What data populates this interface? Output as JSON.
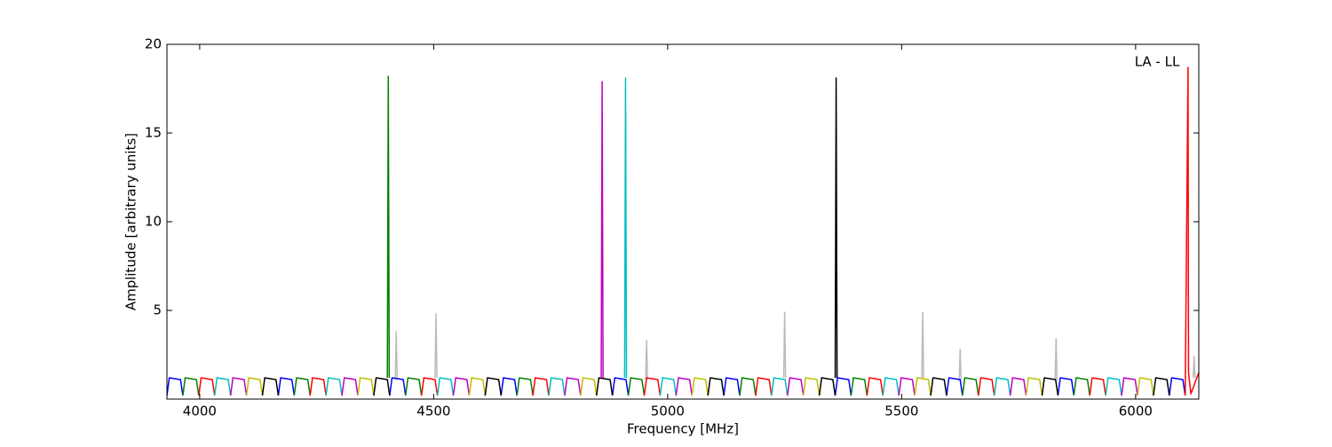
{
  "chart_data": {
    "type": "line",
    "annotation": "LA - LL",
    "x_label": "Frequency [MHz]",
    "y_label": "Amplitude [arbitrary units]",
    "xlim": [
      3930,
      6135
    ],
    "xticks": [
      4000,
      4500,
      5000,
      5500,
      6000
    ],
    "ylim": [
      0,
      20
    ],
    "yticks": [
      5,
      10,
      15,
      20
    ],
    "series": [
      {
        "color": "#bbbbbb",
        "x": [
          4418,
          4420,
          4422,
          null,
          4503,
          4505,
          4507,
          null,
          4953,
          4955,
          4957,
          null,
          5248,
          5250,
          5252,
          null,
          5543,
          5545,
          5547,
          null,
          5623,
          5625,
          5627,
          null,
          5828,
          5830,
          5832,
          null,
          6123,
          6125,
          6127
        ],
        "values": [
          1.1,
          3.8,
          1.1,
          null,
          1.2,
          4.8,
          1.2,
          null,
          1.1,
          3.3,
          1.1,
          null,
          1.2,
          4.9,
          1.2,
          null,
          1.2,
          4.9,
          1.2,
          null,
          1.1,
          2.8,
          1.1,
          null,
          1.1,
          3.4,
          1.1,
          null,
          1.2,
          2.4,
          1.2
        ]
      },
      {
        "color": "#0000ff",
        "x": [
          3930,
          3935,
          3959,
          3964,
          null,
          4168,
          4173,
          4197,
          4202,
          null,
          4406,
          4411,
          4435,
          4440,
          null,
          4644,
          4649,
          4673,
          4678,
          null,
          4882,
          4887,
          4911,
          4916,
          null,
          5120,
          5125,
          5149,
          5154,
          null,
          5358,
          5363,
          5387,
          5392,
          null,
          5596,
          5601,
          5625,
          5630,
          null,
          5834,
          5839,
          5863,
          5868,
          null,
          6072,
          6077,
          6101,
          6106
        ],
        "values": [
          0.2,
          1.2,
          1.1,
          0.2,
          null,
          0.2,
          1.2,
          1.1,
          0.2,
          null,
          0.2,
          1.2,
          1.1,
          0.2,
          null,
          0.2,
          1.2,
          1.1,
          0.2,
          null,
          0.2,
          1.2,
          1.1,
          0.2,
          null,
          0.2,
          1.2,
          1.1,
          0.2,
          null,
          0.2,
          1.2,
          1.1,
          0.2,
          null,
          0.2,
          1.2,
          1.1,
          0.2,
          null,
          0.2,
          1.2,
          1.1,
          0.2,
          null,
          0.2,
          1.2,
          1.1,
          0.2
        ]
      },
      {
        "color": "#008000",
        "x": [
          3964,
          3969,
          3993,
          3998,
          null,
          4202,
          4207,
          4231,
          4236,
          null,
          4440,
          4445,
          4469,
          4474,
          null,
          4678,
          4683,
          4707,
          4712,
          null,
          4916,
          4921,
          4945,
          4950,
          null,
          5154,
          5159,
          5183,
          5188,
          null,
          5392,
          5397,
          5421,
          5426,
          null,
          5630,
          5635,
          5659,
          5664,
          null,
          5868,
          5873,
          5897,
          5902
        ],
        "values": [
          0.2,
          1.2,
          1.1,
          0.2,
          null,
          0.2,
          1.2,
          1.1,
          0.2,
          null,
          0.2,
          1.2,
          1.1,
          0.2,
          null,
          0.2,
          1.2,
          1.1,
          0.2,
          null,
          0.2,
          1.2,
          1.1,
          0.2,
          null,
          0.2,
          1.2,
          1.1,
          0.2,
          null,
          0.2,
          1.2,
          1.1,
          0.2,
          null,
          0.2,
          1.2,
          1.1,
          0.2,
          null,
          0.2,
          1.2,
          1.1,
          0.2
        ]
      },
      {
        "color": "#ff0000",
        "x": [
          3998,
          4003,
          4027,
          4032,
          null,
          4236,
          4241,
          4265,
          4270,
          null,
          4474,
          4479,
          4503,
          4508,
          null,
          4712,
          4717,
          4741,
          4746,
          null,
          4950,
          4955,
          4979,
          4984,
          null,
          5188,
          5193,
          5217,
          5222,
          null,
          5426,
          5431,
          5455,
          5460,
          null,
          5664,
          5669,
          5693,
          5698,
          null,
          5902,
          5907,
          5931,
          5936
        ],
        "values": [
          0.2,
          1.2,
          1.1,
          0.2,
          null,
          0.2,
          1.2,
          1.1,
          0.2,
          null,
          0.2,
          1.2,
          1.1,
          0.2,
          null,
          0.2,
          1.2,
          1.1,
          0.2,
          null,
          0.2,
          1.2,
          1.1,
          0.2,
          null,
          0.2,
          1.2,
          1.1,
          0.2,
          null,
          0.2,
          1.2,
          1.1,
          0.2,
          null,
          0.2,
          1.2,
          1.1,
          0.2,
          null,
          0.2,
          1.2,
          1.1,
          0.2
        ]
      },
      {
        "color": "#00bfbf",
        "x": [
          4032,
          4037,
          4061,
          4066,
          null,
          4270,
          4275,
          4299,
          4304,
          null,
          4508,
          4513,
          4537,
          4542,
          null,
          4746,
          4751,
          4775,
          4780,
          null,
          4984,
          4989,
          5013,
          5018,
          null,
          5222,
          5227,
          5251,
          5256,
          null,
          5460,
          5465,
          5489,
          5494,
          null,
          5698,
          5703,
          5727,
          5732,
          null,
          5936,
          5941,
          5965,
          5970
        ],
        "values": [
          0.2,
          1.2,
          1.1,
          0.2,
          null,
          0.2,
          1.2,
          1.1,
          0.2,
          null,
          0.2,
          1.2,
          1.1,
          0.2,
          null,
          0.2,
          1.2,
          1.1,
          0.2,
          null,
          0.2,
          1.2,
          1.1,
          0.2,
          null,
          0.2,
          1.2,
          1.1,
          0.2,
          null,
          0.2,
          1.2,
          1.1,
          0.2,
          null,
          0.2,
          1.2,
          1.1,
          0.2,
          null,
          0.2,
          1.2,
          1.1,
          0.2
        ]
      },
      {
        "color": "#bf00bf",
        "x": [
          4066,
          4071,
          4095,
          4100,
          null,
          4304,
          4309,
          4333,
          4338,
          null,
          4542,
          4547,
          4571,
          4576,
          null,
          4780,
          4785,
          4809,
          4814,
          null,
          5018,
          5023,
          5047,
          5052,
          null,
          5256,
          5261,
          5285,
          5290,
          null,
          5494,
          5499,
          5523,
          5528,
          null,
          5732,
          5737,
          5761,
          5766,
          null,
          5970,
          5975,
          5999,
          6004
        ],
        "values": [
          0.2,
          1.2,
          1.1,
          0.2,
          null,
          0.2,
          1.2,
          1.1,
          0.2,
          null,
          0.2,
          1.2,
          1.1,
          0.2,
          null,
          0.2,
          1.2,
          1.1,
          0.2,
          null,
          0.2,
          1.2,
          1.1,
          0.2,
          null,
          0.2,
          1.2,
          1.1,
          0.2,
          null,
          0.2,
          1.2,
          1.1,
          0.2,
          null,
          0.2,
          1.2,
          1.1,
          0.2,
          null,
          0.2,
          1.2,
          1.1,
          0.2
        ]
      },
      {
        "color": "#bfbf00",
        "x": [
          4100,
          4105,
          4129,
          4134,
          null,
          4338,
          4343,
          4367,
          4372,
          null,
          4576,
          4581,
          4605,
          4610,
          null,
          4814,
          4819,
          4843,
          4848,
          null,
          5052,
          5057,
          5081,
          5086,
          null,
          5290,
          5295,
          5319,
          5324,
          null,
          5528,
          5533,
          5557,
          5562,
          null,
          5766,
          5771,
          5795,
          5800,
          null,
          6004,
          6009,
          6033,
          6038
        ],
        "values": [
          0.2,
          1.2,
          1.1,
          0.2,
          null,
          0.2,
          1.2,
          1.1,
          0.2,
          null,
          0.2,
          1.2,
          1.1,
          0.2,
          null,
          0.2,
          1.2,
          1.1,
          0.2,
          null,
          0.2,
          1.2,
          1.1,
          0.2,
          null,
          0.2,
          1.2,
          1.1,
          0.2,
          null,
          0.2,
          1.2,
          1.1,
          0.2,
          null,
          0.2,
          1.2,
          1.1,
          0.2,
          null,
          0.2,
          1.2,
          1.1,
          0.2
        ]
      },
      {
        "color": "#000000",
        "x": [
          4134,
          4139,
          4163,
          4168,
          null,
          4372,
          4377,
          4401,
          4406,
          null,
          4610,
          4615,
          4639,
          4644,
          null,
          4848,
          4853,
          4877,
          4882,
          null,
          5086,
          5091,
          5115,
          5120,
          null,
          5324,
          5329,
          5353,
          5358,
          null,
          5562,
          5567,
          5591,
          5596,
          null,
          5800,
          5805,
          5829,
          5834,
          null,
          6038,
          6043,
          6067,
          6072
        ],
        "values": [
          0.2,
          1.2,
          1.1,
          0.2,
          null,
          0.2,
          1.2,
          1.1,
          0.2,
          null,
          0.2,
          1.2,
          1.1,
          0.2,
          null,
          0.2,
          1.2,
          1.1,
          0.2,
          null,
          0.2,
          1.2,
          1.1,
          0.2,
          null,
          0.2,
          1.2,
          1.1,
          0.2,
          null,
          0.2,
          1.2,
          1.1,
          0.2,
          null,
          0.2,
          1.2,
          1.1,
          0.2,
          null,
          0.2,
          1.2,
          1.1,
          0.2
        ]
      },
      {
        "color": "#008000",
        "x": [
          4401,
          4403,
          4405
        ],
        "values": [
          1.2,
          18.2,
          1.2
        ]
      },
      {
        "color": "#bf00bf",
        "x": [
          4858,
          4860,
          4862
        ],
        "values": [
          1.2,
          17.9,
          1.2
        ]
      },
      {
        "color": "#00bfbf",
        "x": [
          4908,
          4910,
          4912
        ],
        "values": [
          1.2,
          18.1,
          1.2
        ]
      },
      {
        "color": "#000000",
        "x": [
          5358,
          5360,
          5362
        ],
        "values": [
          1.2,
          18.1,
          1.2
        ]
      },
      {
        "color": "#ff0000",
        "x": [
          6106,
          6112,
          6113,
          6118,
          6135
        ],
        "values": [
          0.2,
          18.7,
          1.5,
          0.3,
          1.5
        ]
      }
    ]
  }
}
